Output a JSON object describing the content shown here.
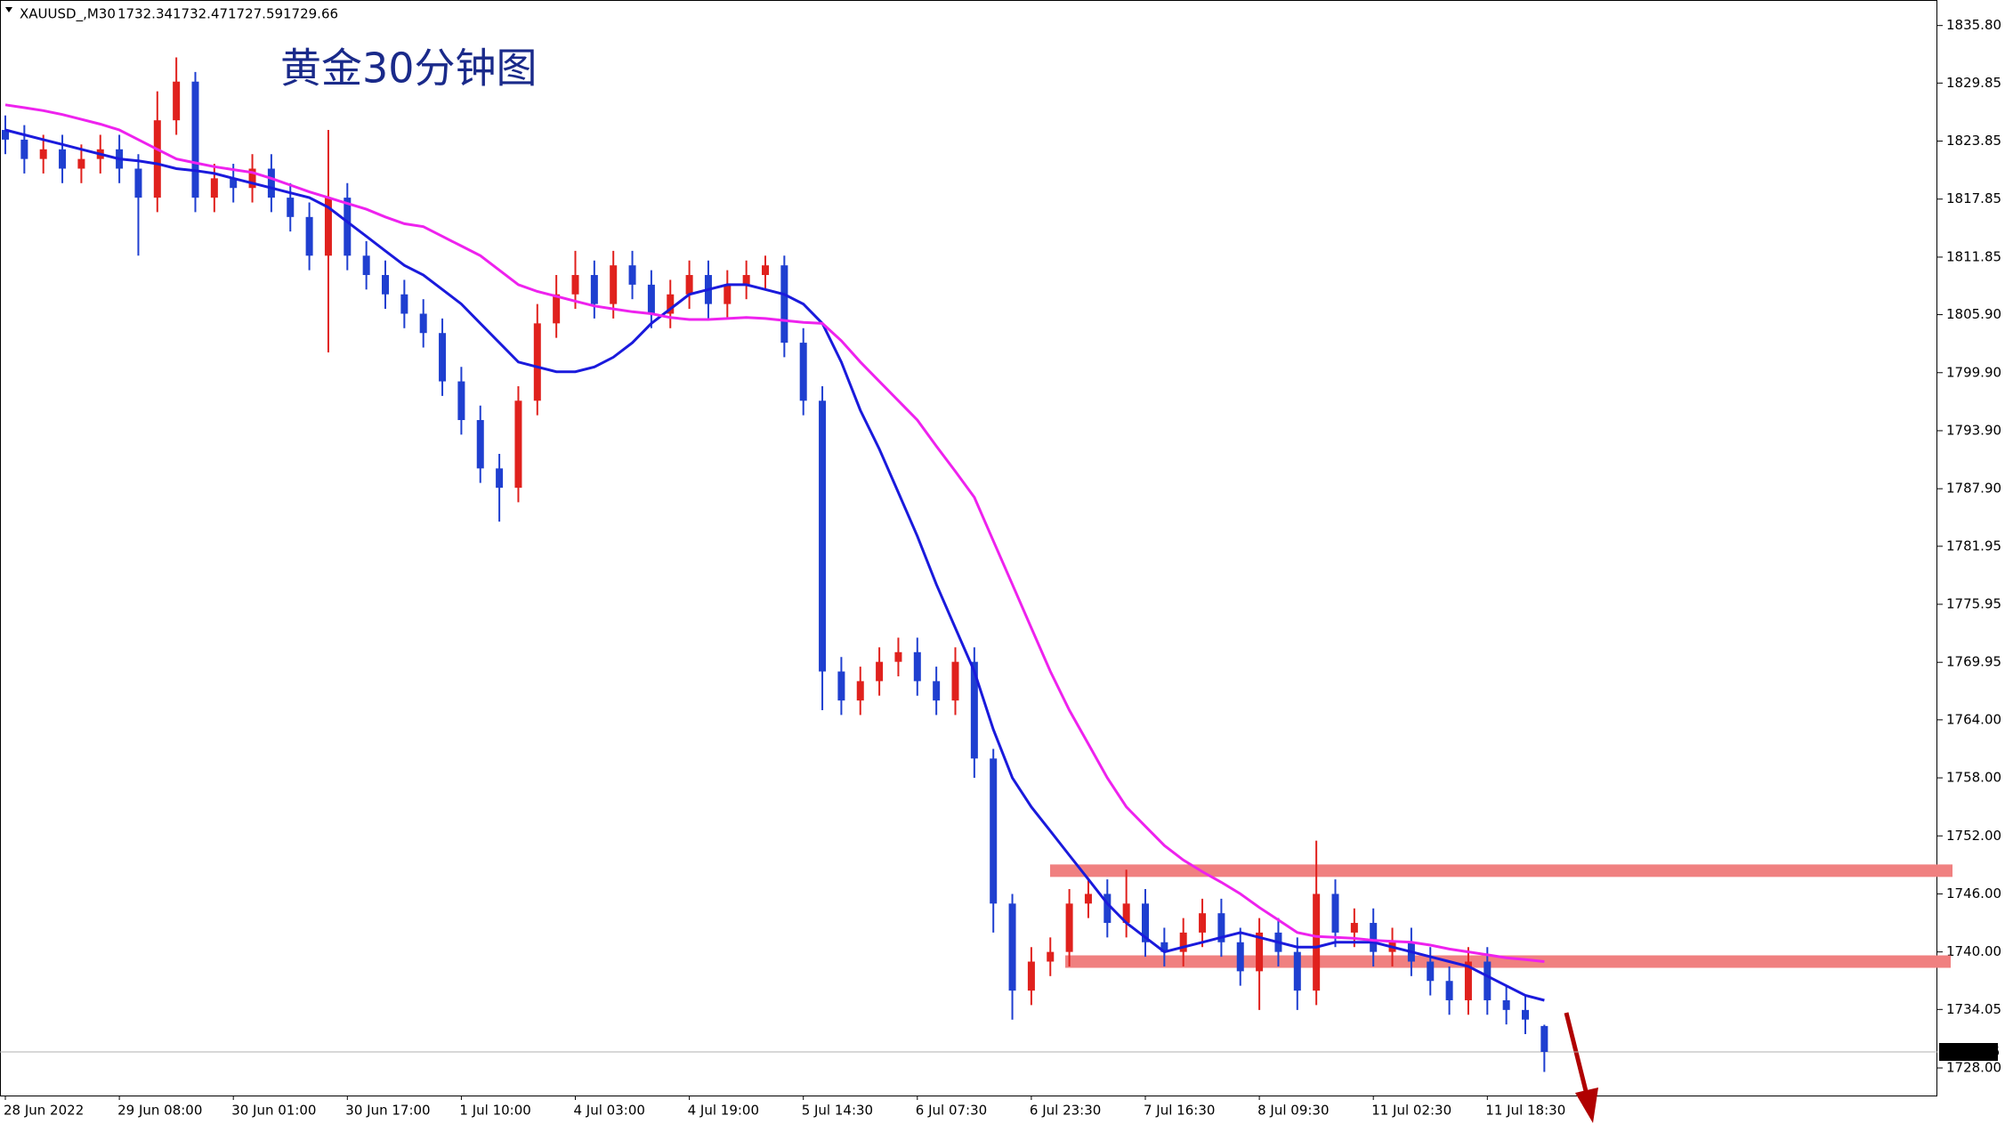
{
  "chart_data": {
    "type": "candlestick",
    "symbol": "XAUUSD_,M30",
    "title": "黄金30分钟图",
    "categories": [
      "28 Jun 2022",
      null,
      null,
      null,
      null,
      null,
      "29 Jun 08:00",
      null,
      null,
      null,
      null,
      null,
      "30 Jun 01:00",
      null,
      null,
      null,
      null,
      null,
      "30 Jun 17:00",
      null,
      null,
      null,
      null,
      null,
      "1 Jul 10:00",
      null,
      null,
      null,
      null,
      null,
      "4 Jul 03:00",
      null,
      null,
      null,
      null,
      null,
      "4 Jul 19:00",
      null,
      null,
      null,
      null,
      null,
      "5 Jul 14:30",
      null,
      null,
      null,
      null,
      null,
      "6 Jul 07:30",
      null,
      null,
      null,
      null,
      null,
      "6 Jul 23:30",
      null,
      null,
      null,
      null,
      null,
      "7 Jul 16:30",
      null,
      null,
      null,
      null,
      null,
      "8 Jul 09:30",
      null,
      null,
      null,
      null,
      null,
      "11 Jul 02:30",
      null,
      null,
      null,
      null,
      null,
      "11 Jul 18:30",
      null,
      null,
      null
    ],
    "open": [
      1825,
      1824,
      1822,
      1823,
      1821,
      1822,
      1823,
      1821,
      1818,
      1826,
      1830,
      1818,
      1820,
      1819,
      1821,
      1818,
      1816,
      1812,
      1818,
      1812,
      1810,
      1808,
      1806,
      1804,
      1799,
      1795,
      1790,
      1788,
      1797,
      1805,
      1808,
      1810,
      1807,
      1811,
      1809,
      1806,
      1808,
      1810,
      1807,
      1809,
      1810,
      1811,
      1803,
      1797,
      1769,
      1766,
      1768,
      1770,
      1771,
      1768,
      1766,
      1770,
      1760,
      1745,
      1736,
      1739,
      1740,
      1745,
      1746,
      1743,
      1745,
      1741,
      1740,
      1742,
      1744,
      1741,
      1738,
      1742,
      1740,
      1736,
      1746,
      1742,
      1743,
      1740,
      1741,
      1739,
      1737,
      1735,
      1739,
      1735,
      1734,
      1732.34
    ],
    "high": [
      1826.5,
      1825.5,
      1824.5,
      1824.5,
      1823.5,
      1824.5,
      1824.5,
      1822.5,
      1829,
      1832.5,
      1831,
      1821.5,
      1821.5,
      1822.5,
      1822.5,
      1819.5,
      1817.5,
      1825,
      1819.5,
      1813.5,
      1811.5,
      1809.5,
      1807.5,
      1805.5,
      1800.5,
      1796.5,
      1791.5,
      1798.5,
      1807,
      1810,
      1812.5,
      1811.5,
      1812.5,
      1812.5,
      1810.5,
      1809.5,
      1811.5,
      1811.5,
      1810.5,
      1811.5,
      1812,
      1812,
      1804.5,
      1798.5,
      1770.5,
      1769.5,
      1771.5,
      1772.5,
      1772.5,
      1769.5,
      1771.5,
      1771.5,
      1761,
      1746,
      1740.5,
      1741.5,
      1746.5,
      1747.5,
      1747.5,
      1748.5,
      1746.5,
      1742.5,
      1743.5,
      1745.5,
      1745.5,
      1742.5,
      1743.5,
      1743.5,
      1741.5,
      1751.5,
      1747.5,
      1744.5,
      1744.5,
      1742.5,
      1742.5,
      1740.5,
      1738.5,
      1740.5,
      1740.5,
      1736.5,
      1735.5,
      1732.47
    ],
    "low": [
      1822.5,
      1820.5,
      1820.5,
      1819.5,
      1819.5,
      1820.5,
      1819.5,
      1812,
      1816.5,
      1824.5,
      1816.5,
      1816.5,
      1817.5,
      1817.5,
      1816.5,
      1814.5,
      1810.5,
      1802,
      1810.5,
      1808.5,
      1806.5,
      1804.5,
      1802.5,
      1797.5,
      1793.5,
      1788.5,
      1784.5,
      1786.5,
      1795.5,
      1803.5,
      1806.5,
      1805.5,
      1805.5,
      1807.5,
      1804.5,
      1804.5,
      1806.5,
      1805.5,
      1805.5,
      1807.5,
      1808.5,
      1801.5,
      1795.5,
      1765,
      1764.5,
      1764.5,
      1766.5,
      1768.5,
      1766.5,
      1764.5,
      1764.5,
      1758,
      1742,
      1733,
      1734.5,
      1737.5,
      1738.5,
      1743.5,
      1741.5,
      1741.5,
      1739.5,
      1738.5,
      1738.5,
      1740.5,
      1739.5,
      1736.5,
      1734,
      1738.5,
      1734,
      1734.5,
      1740.5,
      1740.5,
      1738.5,
      1738.5,
      1737.5,
      1735.5,
      1733.5,
      1733.5,
      1733.5,
      1732.5,
      1731.5,
      1727.59
    ],
    "close": [
      1824,
      1822,
      1823,
      1821,
      1822,
      1823,
      1821,
      1818,
      1826,
      1830,
      1818,
      1820,
      1819,
      1821,
      1818,
      1816,
      1812,
      1818,
      1812,
      1810,
      1808,
      1806,
      1804,
      1799,
      1795,
      1790,
      1788,
      1797,
      1805,
      1808,
      1810,
      1807,
      1811,
      1809,
      1806,
      1808,
      1810,
      1807,
      1809,
      1810,
      1811,
      1803,
      1797,
      1769,
      1766,
      1768,
      1770,
      1771,
      1768,
      1766,
      1770,
      1760,
      1745,
      1736,
      1739,
      1740,
      1745,
      1746,
      1743,
      1745,
      1741,
      1740,
      1742,
      1744,
      1741,
      1738,
      1742,
      1740,
      1736,
      1746,
      1742,
      1743,
      1740,
      1741,
      1739,
      1737,
      1735,
      1739,
      1735,
      1734,
      1733,
      1729.66
    ],
    "up_color": "#e0211d",
    "down_color": "#1f3fd0",
    "lines": [
      {
        "color": "#1a1adc",
        "values": [
          1825,
          1824.5,
          1824,
          1823.5,
          1823,
          1822.5,
          1822,
          1821.8,
          1821.5,
          1821,
          1820.8,
          1820.5,
          1820,
          1819.5,
          1819,
          1818.5,
          1818,
          1817,
          1815.5,
          1814,
          1812.5,
          1811,
          1810,
          1808.5,
          1807,
          1805,
          1803,
          1801,
          1800.5,
          1800,
          1800,
          1800.5,
          1801.5,
          1803,
          1805,
          1806.5,
          1808,
          1808.5,
          1809,
          1809,
          1808.5,
          1808,
          1807,
          1805,
          1801,
          1796,
          1792,
          1787.5,
          1783,
          1778,
          1773.5,
          1769,
          1763,
          1758,
          1755,
          1752.5,
          1750,
          1747.5,
          1745,
          1743,
          1741.5,
          1740,
          1740.5,
          1741,
          1741.5,
          1742,
          1741.5,
          1741,
          1740.5,
          1740.5,
          1741,
          1741,
          1741,
          1740.5,
          1740,
          1739.5,
          1739,
          1738.5,
          1737.5,
          1736.5,
          1735.5,
          1735
        ]
      },
      {
        "color": "#ee22ee",
        "values": [
          1827.6,
          1827.3,
          1827,
          1826.6,
          1826.1,
          1825.6,
          1825,
          1824,
          1823,
          1822,
          1821.6,
          1821.2,
          1820.9,
          1820.6,
          1820,
          1819.3,
          1818.6,
          1818,
          1817.4,
          1816.8,
          1816,
          1815.3,
          1815,
          1814,
          1813,
          1812,
          1810.5,
          1809,
          1808.3,
          1807.8,
          1807.3,
          1806.8,
          1806.5,
          1806.2,
          1806,
          1805.6,
          1805.4,
          1805.4,
          1805.5,
          1805.6,
          1805.5,
          1805.3,
          1805.1,
          1805,
          1803.2,
          1801,
          1799,
          1797,
          1795,
          1792.3,
          1789.7,
          1787,
          1782.5,
          1778,
          1773.5,
          1769,
          1765,
          1761.5,
          1758,
          1755,
          1753,
          1751,
          1749.5,
          1748.3,
          1747.2,
          1746,
          1744.6,
          1743.3,
          1742,
          1741.6,
          1741.5,
          1741.4,
          1741.2,
          1741.1,
          1741,
          1740.7,
          1740.3,
          1740,
          1739.7,
          1739.4,
          1739.2,
          1739
        ]
      }
    ],
    "levels": [
      1748.4,
      1739.0
    ],
    "level_color": "#f08080",
    "ylim": [
      1725.15,
      1838.44
    ],
    "yticks": [
      {
        "value": 1835.8,
        "label": "1835.80"
      },
      {
        "value": 1829.85,
        "label": "1829.85"
      },
      {
        "value": 1823.85,
        "label": "1823.85"
      },
      {
        "value": 1817.85,
        "label": "1817.85"
      },
      {
        "value": 1811.85,
        "label": "1811.85"
      },
      {
        "value": 1805.9,
        "label": "1805.90"
      },
      {
        "value": 1799.9,
        "label": "1799.90"
      },
      {
        "value": 1793.9,
        "label": "1793.90"
      },
      {
        "value": 1787.9,
        "label": "1787.90"
      },
      {
        "value": 1781.95,
        "label": "1781.95"
      },
      {
        "value": 1775.95,
        "label": "1775.95"
      },
      {
        "value": 1769.95,
        "label": "1769.95"
      },
      {
        "value": 1764,
        "label": "1764.00"
      },
      {
        "value": 1758,
        "label": "1758.00"
      },
      {
        "value": 1752,
        "label": "1752.00"
      },
      {
        "value": 1746,
        "label": "1746.00"
      },
      {
        "value": 1740,
        "label": "1740.00"
      },
      {
        "value": 1734.05,
        "label": "1734.05"
      },
      {
        "value": 1728,
        "label": "1728.00"
      }
    ]
  }
}
